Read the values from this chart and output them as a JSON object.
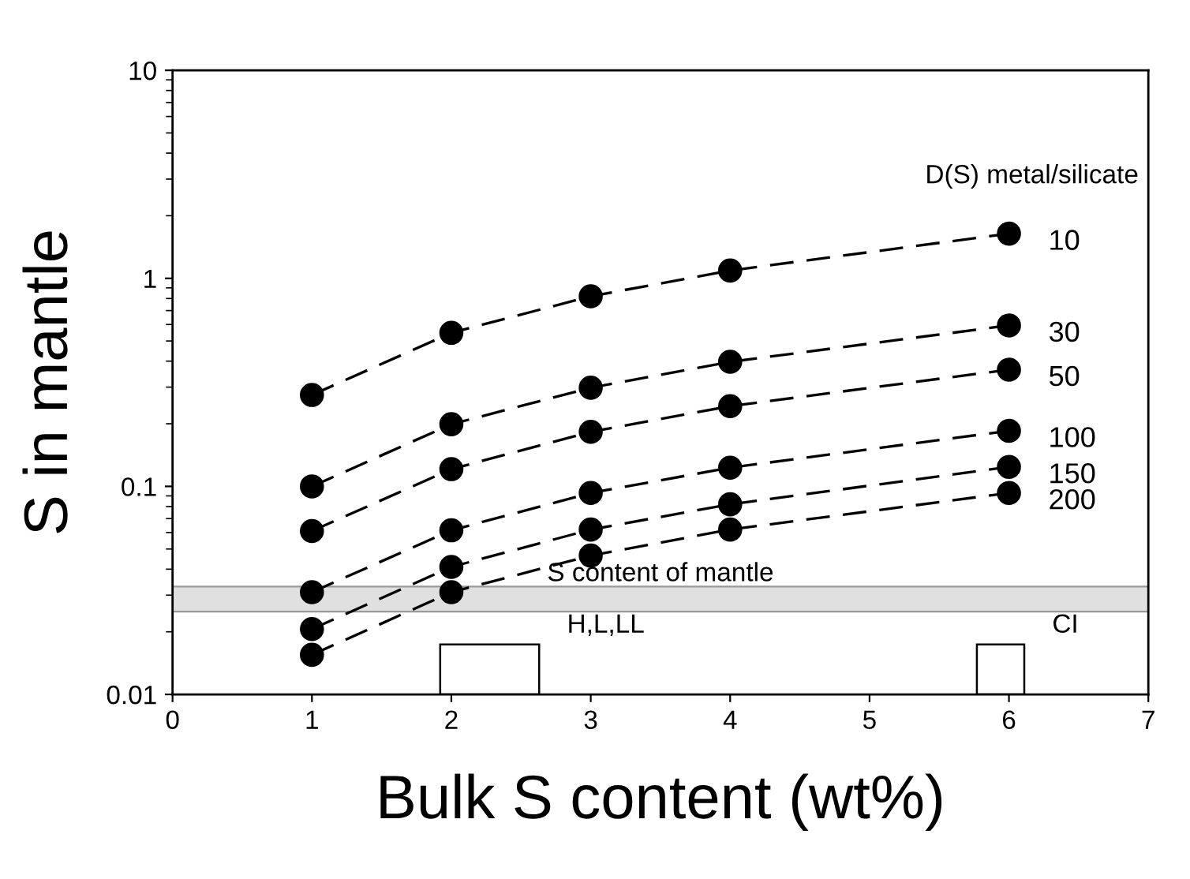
{
  "chart_data": {
    "type": "line",
    "xlabel": "Bulk S content (wt%)",
    "ylabel": "S in mantle",
    "legend_title": "D(S) metal/silicate",
    "x": [
      1,
      2,
      3,
      4,
      6
    ],
    "series": [
      {
        "name": "10",
        "color": "#000000",
        "values": [
          0.275,
          0.547,
          0.82,
          1.09,
          1.64
        ]
      },
      {
        "name": "30",
        "color": "#000000",
        "values": [
          0.1,
          0.199,
          0.298,
          0.397,
          0.594
        ]
      },
      {
        "name": "50",
        "color": "#000000",
        "values": [
          0.061,
          0.121,
          0.183,
          0.243,
          0.364
        ]
      },
      {
        "name": "100",
        "color": "#000000",
        "values": [
          0.031,
          0.0615,
          0.093,
          0.123,
          0.185
        ]
      },
      {
        "name": "150",
        "color": "#000000",
        "values": [
          0.0206,
          0.041,
          0.062,
          0.082,
          0.124
        ]
      },
      {
        "name": "200",
        "color": "#000000",
        "values": [
          0.0155,
          0.031,
          0.0465,
          0.062,
          0.093
        ]
      }
    ],
    "bands": [
      {
        "axis": "y",
        "from": 0.025,
        "to": 0.033,
        "label": "S content of mantle",
        "color": "#e0e0e0"
      },
      {
        "axis": "x",
        "from": 1.92,
        "to": 2.63,
        "label": "H,L,LL",
        "color": "#ffffff"
      },
      {
        "axis": "x",
        "from": 5.77,
        "to": 6.11,
        "label": "CI",
        "color": "#ffffff"
      }
    ],
    "log": "y",
    "marker": "circle",
    "line_style": "dashed",
    "legend": false,
    "grid": false,
    "xlim": [
      0,
      7
    ],
    "xticks": [
      0,
      1,
      2,
      3,
      4,
      5,
      6,
      7
    ],
    "ylim": [
      0.01,
      10
    ],
    "yticks": [
      0.01,
      0.1,
      1,
      10
    ]
  }
}
